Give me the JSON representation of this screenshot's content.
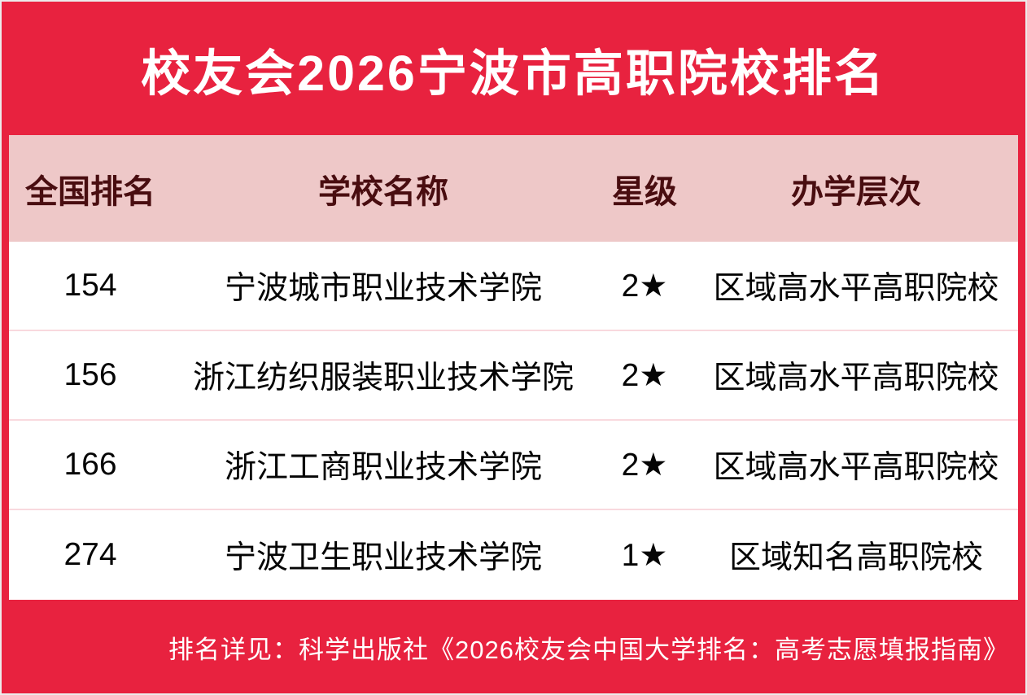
{
  "title": "校友会2026宁波市高职院校排名",
  "colors": {
    "accent_red": "#E8223F",
    "header_bg": "#EEC8C8",
    "header_text": "#490D10",
    "row_divider": "#F9D9DE",
    "row_text": "#050505",
    "title_text": "#FFFFFF"
  },
  "chart_data": {
    "type": "table",
    "title": "校友会2026宁波市高职院校排名",
    "columns": [
      "全国排名",
      "学校名称",
      "星级",
      "办学层次"
    ],
    "rows": [
      [
        "154",
        "宁波城市职业技术学院",
        "2★",
        "区域高水平高职院校"
      ],
      [
        "156",
        "浙江纺织服装职业技术学院",
        "2★",
        "区域高水平高职院校"
      ],
      [
        "166",
        "浙江工商职业技术学院",
        "2★",
        "区域高水平高职院校"
      ],
      [
        "274",
        "宁波卫生职业技术学院",
        "1★",
        "区域知名高职院校"
      ]
    ],
    "note": "排名详见：科学出版社《2026校友会中国大学排名：高考志愿填报指南》"
  }
}
